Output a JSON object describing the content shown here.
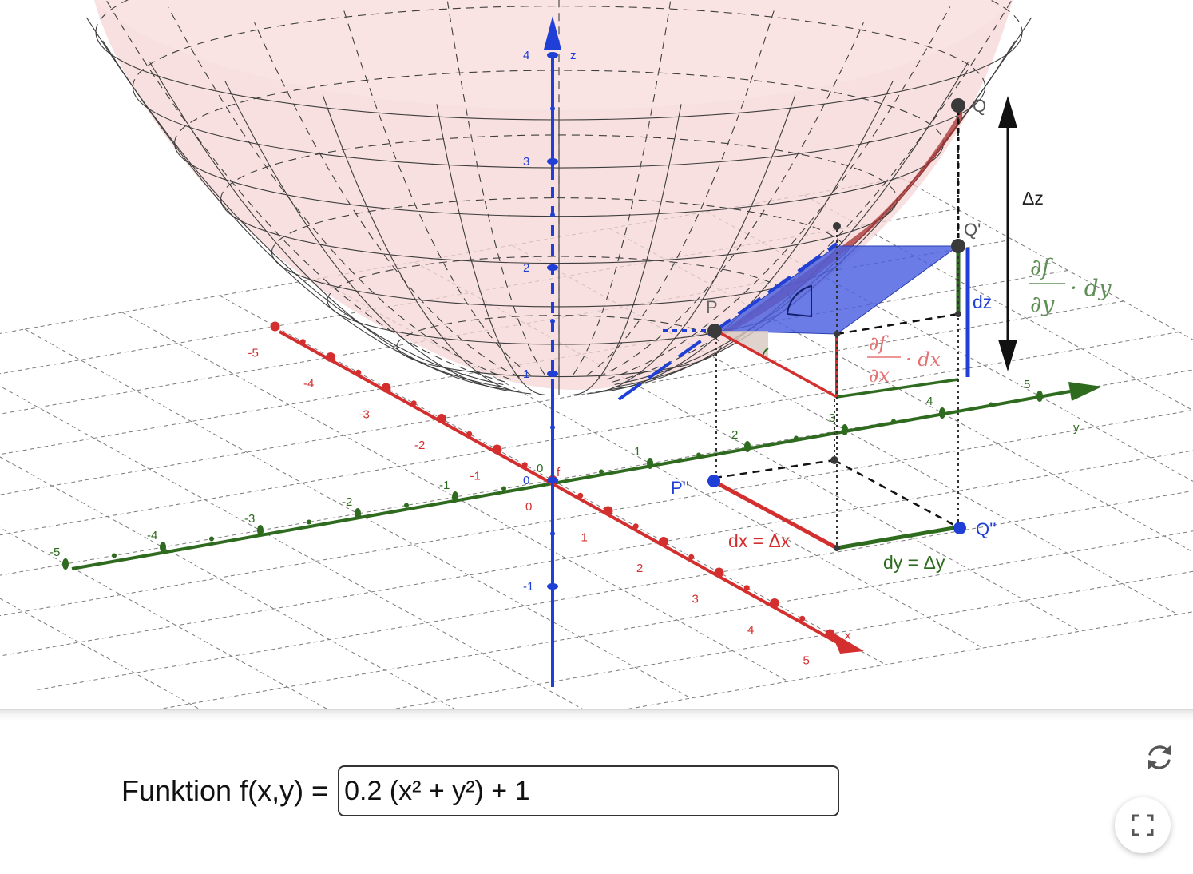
{
  "axes": {
    "x": {
      "label": "x",
      "color": "#d32f2f",
      "ticks": [
        "-5",
        "-4",
        "-3",
        "-2",
        "-1",
        "0",
        "1",
        "2",
        "3",
        "4",
        "5"
      ]
    },
    "y": {
      "label": "y",
      "color": "#2e6b1f",
      "ticks": [
        "-5",
        "-4",
        "-3",
        "-2",
        "-1",
        "0",
        "1",
        "2",
        "3",
        "4",
        "5"
      ]
    },
    "z": {
      "label": "z",
      "color": "#1f3fd6",
      "ticks": [
        "-1",
        "0",
        "1",
        "2",
        "3",
        "4"
      ]
    }
  },
  "function_name": "f",
  "points": {
    "P": "P",
    "Q": "Q",
    "Q_prime": "Q'",
    "P_double_prime": "P''",
    "Q_double_prime": "Q''"
  },
  "annotations": {
    "delta_z": "Δz",
    "dz": "dz",
    "dx_label": "dx = Δx",
    "dy_label": "dy = Δy",
    "partial_x_num": "∂f",
    "partial_x_den": "∂x",
    "partial_x_factor": "· dx",
    "partial_y_num": "∂f",
    "partial_y_den": "∂y",
    "partial_y_factor": "· dy"
  },
  "colors": {
    "surface": "#f6d6d6",
    "tangent_plane": "#4a5fe0",
    "x_color": "#d32f2f",
    "y_color": "#2e6b1f",
    "z_color": "#1f3fd6",
    "point_dark": "#3a3a3a",
    "point_blue": "#1f3fd6"
  },
  "input": {
    "label": "Funktion f(x,y) =",
    "value": "0.2 (x² + y²) + 1"
  },
  "toolbar": {
    "reset_icon": "refresh-icon",
    "fullscreen_icon": "fullscreen-icon"
  }
}
